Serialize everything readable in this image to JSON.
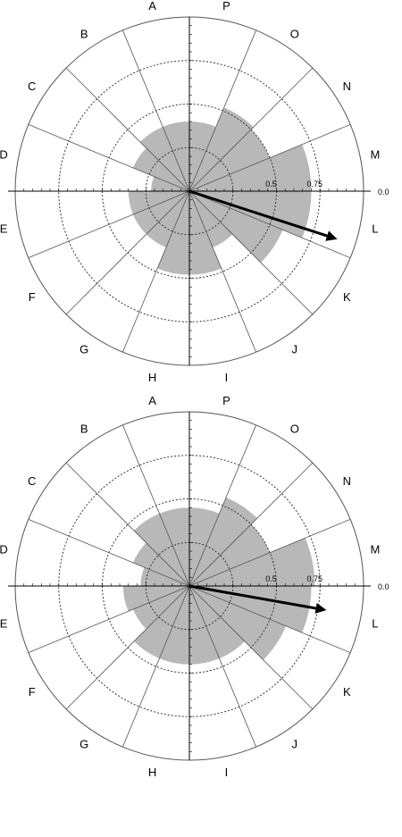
{
  "directions": [
    "A",
    "P",
    "O",
    "N",
    "M",
    "L",
    "K",
    "J",
    "I",
    "H",
    "G",
    "F",
    "E",
    "D",
    "C",
    "B"
  ],
  "ring_labels": [
    "0.5",
    "0.75",
    "0.0"
  ],
  "colors": {
    "fill": "#b8b8b8",
    "line": "#000000",
    "grid": "#555555"
  },
  "chart_data": [
    {
      "type": "polar-area",
      "categories": [
        "P",
        "O",
        "N",
        "M",
        "L",
        "K",
        "J",
        "I",
        "H",
        "G",
        "F",
        "E",
        "D",
        "C",
        "B",
        "A"
      ],
      "values": [
        0.4,
        0.52,
        0.5,
        0.7,
        0.7,
        0.58,
        0.35,
        0.48,
        0.48,
        0.35,
        0.35,
        0.35,
        0.22,
        0.35,
        0.4,
        0.4
      ],
      "rings": [
        0.25,
        0.5,
        0.75
      ],
      "arrow": {
        "bearing_deg": 108,
        "magnitude": 0.95
      }
    },
    {
      "type": "polar-area",
      "categories": [
        "P",
        "O",
        "N",
        "M",
        "L",
        "K",
        "J",
        "I",
        "H",
        "G",
        "F",
        "E",
        "D",
        "C",
        "B",
        "A"
      ],
      "values": [
        0.45,
        0.55,
        0.5,
        0.72,
        0.7,
        0.6,
        0.45,
        0.45,
        0.45,
        0.45,
        0.35,
        0.38,
        0.28,
        0.35,
        0.45,
        0.45
      ],
      "rings": [
        0.25,
        0.5,
        0.75
      ],
      "arrow": {
        "bearing_deg": 100,
        "magnitude": 0.85
      }
    }
  ]
}
